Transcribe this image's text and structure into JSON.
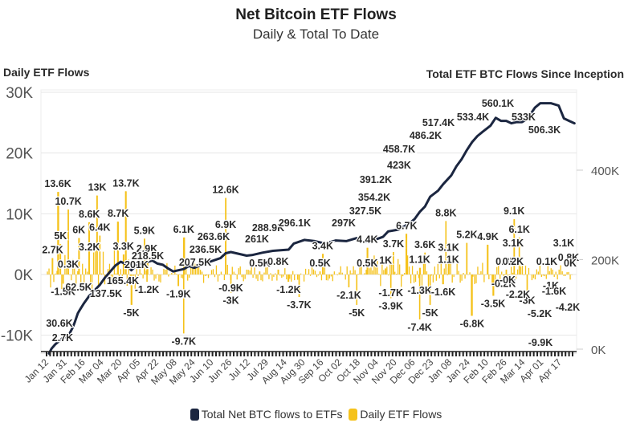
{
  "colors": {
    "line": "#1b2640",
    "bar": "#f5c21b",
    "grid": "#e6e6e6",
    "axis_text": "#555555",
    "label": "#2b2b2b"
  },
  "chart_data": {
    "type": "bar+line",
    "title": "Net Bitcoin ETF Flows",
    "subtitle": "Daily & Total To Date",
    "ylabel_left": "Daily ETF Flows",
    "ylabel_right": "Total ETF BTC Flows Since Inception",
    "left_axis": {
      "ylim": [
        -13000,
        30000
      ],
      "ticks": [
        30000,
        20000,
        10000,
        0,
        -10000
      ],
      "tick_labels": [
        "30K",
        "20K",
        "10K",
        "0K",
        "-10K"
      ]
    },
    "right_axis": {
      "ylim": [
        0,
        580000
      ],
      "ticks": [
        400000,
        200000,
        0
      ],
      "tick_labels": [
        "400K",
        "200K",
        "0K"
      ]
    },
    "grid": true,
    "legend": {
      "placement": "bottom-center",
      "items": [
        {
          "name": "Total Net BTC flows to ETFs",
          "color": "#1b2640"
        },
        {
          "name": "Daily ETF Flows",
          "color": "#f5c21b"
        }
      ]
    },
    "x_tick_labels": [
      "Jan 12",
      "Jan 31",
      "Feb 16",
      "Mar 04",
      "Mar 20",
      "Apr 05",
      "Apr 22",
      "May 08",
      "May 24",
      "Jun 10",
      "Jun 26",
      "Jul 12",
      "Jul 29",
      "Aug 14",
      "Aug 30",
      "Sep 16",
      "Oct 02",
      "Oct 18",
      "Nov 04",
      "Nov 20",
      "Dec 06",
      "Dec 23",
      "Jan 08",
      "Jan 24",
      "Feb 10",
      "Feb 26",
      "Mar 14",
      "Apr 01",
      "Apr 17"
    ],
    "daily_labels": [
      {
        "x": 0.02,
        "v": 13600,
        "t": "13.6K"
      },
      {
        "x": 0.04,
        "v": 10700,
        "t": "10.7K"
      },
      {
        "x": 0.025,
        "v": 5000,
        "t": "5K"
      },
      {
        "x": 0.01,
        "v": 2700,
        "t": "2.7K"
      },
      {
        "x": 0.04,
        "v": 300,
        "t": "0.3K"
      },
      {
        "x": 0.03,
        "v": -1500,
        "t": "-1.5K"
      },
      {
        "x": 0.095,
        "v": 13000,
        "t": "13K"
      },
      {
        "x": 0.08,
        "v": 8600,
        "t": "8.6K"
      },
      {
        "x": 0.06,
        "v": 6000,
        "t": "6K"
      },
      {
        "x": 0.1,
        "v": 6400,
        "t": "6.4K"
      },
      {
        "x": 0.08,
        "v": 3200,
        "t": "3.2K"
      },
      {
        "x": 0.15,
        "v": 13700,
        "t": "13.7K"
      },
      {
        "x": 0.135,
        "v": 8700,
        "t": "8.7K"
      },
      {
        "x": 0.145,
        "v": 3300,
        "t": "3.3K"
      },
      {
        "x": 0.185,
        "v": 5900,
        "t": "5.9K"
      },
      {
        "x": 0.19,
        "v": 2900,
        "t": "2.9K"
      },
      {
        "x": 0.19,
        "v": -1200,
        "t": "-1.2K"
      },
      {
        "x": 0.16,
        "v": -5000,
        "t": "-5K"
      },
      {
        "x": 0.26,
        "v": 6100,
        "t": "6.1K"
      },
      {
        "x": 0.25,
        "v": -1900,
        "t": "-1.9K"
      },
      {
        "x": 0.26,
        "v": -9700,
        "t": "-9.7K"
      },
      {
        "x": 0.34,
        "v": 12600,
        "t": "12.6K"
      },
      {
        "x": 0.34,
        "v": 6900,
        "t": "6.9K"
      },
      {
        "x": 0.35,
        "v": -900,
        "t": "-0.9K"
      },
      {
        "x": 0.35,
        "v": -3000,
        "t": "-3K"
      },
      {
        "x": 0.405,
        "v": 500,
        "t": "0.5K"
      },
      {
        "x": 0.44,
        "v": 800,
        "t": "0.8K"
      },
      {
        "x": 0.46,
        "v": -1200,
        "t": "-1.2K"
      },
      {
        "x": 0.48,
        "v": -3700,
        "t": "-3.7K"
      },
      {
        "x": 0.525,
        "v": 3400,
        "t": "3.4K"
      },
      {
        "x": 0.52,
        "v": 500,
        "t": "0.5K"
      },
      {
        "x": 0.575,
        "v": -2100,
        "t": "-2.1K"
      },
      {
        "x": 0.59,
        "v": -5000,
        "t": "-5K"
      },
      {
        "x": 0.61,
        "v": 4400,
        "t": "4.4K"
      },
      {
        "x": 0.61,
        "v": 500,
        "t": "0.5K"
      },
      {
        "x": 0.66,
        "v": 3700,
        "t": "3.7K"
      },
      {
        "x": 0.645,
        "v": 1000,
        "t": "1K"
      },
      {
        "x": 0.655,
        "v": -1700,
        "t": "-1.7K"
      },
      {
        "x": 0.655,
        "v": -3900,
        "t": "-3.9K"
      },
      {
        "x": 0.685,
        "v": 6700,
        "t": "6.7K"
      },
      {
        "x": 0.72,
        "v": 3600,
        "t": "3.6K"
      },
      {
        "x": 0.71,
        "v": 1100,
        "t": "1.1K"
      },
      {
        "x": 0.71,
        "v": -1300,
        "t": "-1.3K"
      },
      {
        "x": 0.73,
        "v": -5000,
        "t": "-5K"
      },
      {
        "x": 0.71,
        "v": -7400,
        "t": "-7.4K"
      },
      {
        "x": 0.76,
        "v": 8800,
        "t": "8.8K"
      },
      {
        "x": 0.765,
        "v": 3100,
        "t": "3.1K"
      },
      {
        "x": 0.765,
        "v": 1100,
        "t": "1.1K"
      },
      {
        "x": 0.755,
        "v": -1600,
        "t": "-1.6K"
      },
      {
        "x": 0.8,
        "v": 5200,
        "t": "5.2K"
      },
      {
        "x": 0.84,
        "v": 4900,
        "t": "4.9K"
      },
      {
        "x": 0.85,
        "v": -3500,
        "t": "-3.5K"
      },
      {
        "x": 0.81,
        "v": -6800,
        "t": "-6.8K"
      },
      {
        "x": 0.87,
        "v": -200,
        "t": "-0.2K"
      },
      {
        "x": 0.89,
        "v": 9100,
        "t": "9.1K"
      },
      {
        "x": 0.9,
        "v": 6100,
        "t": "6.1K"
      },
      {
        "x": 0.875,
        "v": 800,
        "t": "0.8K"
      },
      {
        "x": 0.915,
        "v": -3000,
        "t": "-3K"
      }
    ],
    "total_line": [
      [
        0.003,
        -13000
      ],
      [
        0.008,
        -12200
      ],
      [
        0.015,
        -11500
      ],
      [
        0.03,
        -10400
      ],
      [
        0.04,
        -10100
      ],
      [
        0.048,
        -8800
      ],
      [
        0.052,
        -7900
      ],
      [
        0.058,
        -6400
      ],
      [
        0.062,
        -5800
      ],
      [
        0.07,
        -4700
      ],
      [
        0.08,
        -3500
      ],
      [
        0.1,
        -1700
      ],
      [
        0.11,
        -500
      ],
      [
        0.13,
        1500
      ],
      [
        0.14,
        2100
      ],
      [
        0.15,
        1700
      ],
      [
        0.16,
        700
      ],
      [
        0.17,
        1500
      ],
      [
        0.18,
        1800
      ],
      [
        0.2,
        2300
      ],
      [
        0.21,
        1800
      ],
      [
        0.22,
        1600
      ],
      [
        0.23,
        1000
      ],
      [
        0.24,
        500
      ],
      [
        0.26,
        900
      ],
      [
        0.27,
        1400
      ],
      [
        0.28,
        1100
      ],
      [
        0.3,
        1800
      ],
      [
        0.31,
        2100
      ],
      [
        0.33,
        2700
      ],
      [
        0.34,
        3500
      ],
      [
        0.35,
        3700
      ],
      [
        0.37,
        3300
      ],
      [
        0.38,
        3100
      ],
      [
        0.39,
        3200
      ],
      [
        0.41,
        3600
      ],
      [
        0.43,
        3900
      ],
      [
        0.46,
        4100
      ],
      [
        0.47,
        5100
      ],
      [
        0.49,
        5700
      ],
      [
        0.51,
        5500
      ],
      [
        0.53,
        5100
      ],
      [
        0.55,
        5600
      ],
      [
        0.57,
        5500
      ],
      [
        0.59,
        6000
      ],
      [
        0.6,
        5400
      ],
      [
        0.62,
        5500
      ],
      [
        0.63,
        5900
      ],
      [
        0.64,
        6200
      ],
      [
        0.65,
        7100
      ],
      [
        0.67,
        7400
      ],
      [
        0.69,
        8400
      ],
      [
        0.7,
        9100
      ],
      [
        0.71,
        10300
      ],
      [
        0.72,
        11200
      ],
      [
        0.73,
        12800
      ],
      [
        0.745,
        13800
      ],
      [
        0.755,
        14900
      ],
      [
        0.77,
        16300
      ],
      [
        0.78,
        17800
      ],
      [
        0.79,
        19000
      ],
      [
        0.8,
        20500
      ],
      [
        0.81,
        21800
      ],
      [
        0.82,
        22800
      ],
      [
        0.83,
        23500
      ],
      [
        0.845,
        24500
      ],
      [
        0.855,
        25800
      ],
      [
        0.865,
        25300
      ],
      [
        0.875,
        25300
      ],
      [
        0.885,
        24900
      ],
      [
        0.895,
        25100
      ],
      [
        0.905,
        25100
      ],
      [
        0.915,
        25600
      ],
      [
        0.93,
        27500
      ],
      [
        0.94,
        28200
      ],
      [
        0.96,
        28200
      ],
      [
        0.975,
        27800
      ],
      [
        0.985,
        25700
      ],
      [
        0.995,
        25300
      ],
      [
        1.005,
        24900
      ]
    ],
    "total_labels": [
      {
        "t": "2.7K"
      },
      {
        "t": "30.6K"
      },
      {
        "t": "62.5K"
      },
      {
        "t": "137.5K"
      },
      {
        "t": "165.4K"
      },
      {
        "t": "201K"
      },
      {
        "t": "218.5K"
      },
      {
        "t": "207.5K"
      },
      {
        "t": "236.5K"
      },
      {
        "t": "263.6K"
      },
      {
        "t": "261K"
      },
      {
        "t": "288.9K"
      },
      {
        "t": "296.1K"
      },
      {
        "t": "297K"
      },
      {
        "t": "327.5K"
      },
      {
        "t": "354.2K"
      },
      {
        "t": "391.2K"
      },
      {
        "t": "423K"
      },
      {
        "t": "458.7K"
      },
      {
        "t": "486.2K"
      },
      {
        "t": "517.4K"
      },
      {
        "t": "533.4K"
      },
      {
        "t": "560.1K"
      },
      {
        "t": "533K"
      },
      {
        "t": "506.3K"
      },
      {
        "t": "0.2K"
      },
      {
        "t": "3.1K"
      },
      {
        "t": "-0K"
      },
      {
        "t": "-2.2K"
      },
      {
        "t": "0.1K"
      },
      {
        "t": "-1K"
      },
      {
        "t": "-5.2K"
      },
      {
        "t": "-9.9K"
      },
      {
        "t": "3.1K"
      },
      {
        "t": "0.8K"
      },
      {
        "t": "-1.6K"
      },
      {
        "t": "0K"
      },
      {
        "t": "-4.2K"
      }
    ]
  }
}
